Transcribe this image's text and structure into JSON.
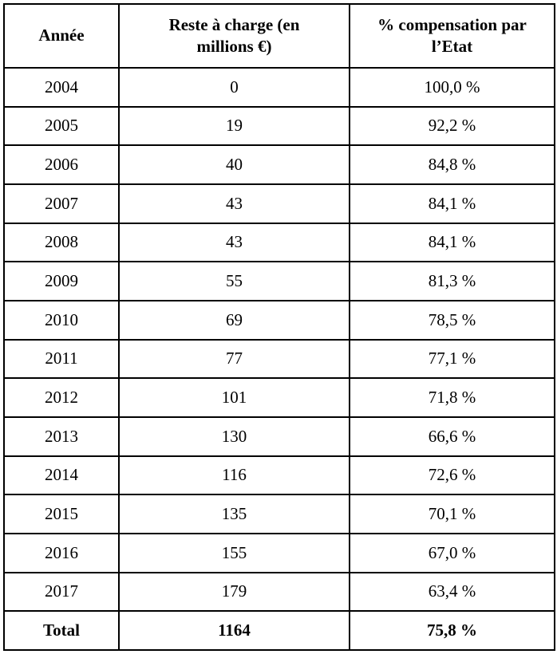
{
  "table": {
    "headers": [
      "Année",
      "Reste à charge (en millions €)",
      "% compensation par l’Etat"
    ],
    "rows": [
      [
        "2004",
        "0",
        "100,0 %"
      ],
      [
        "2005",
        "19",
        "92,2 %"
      ],
      [
        "2006",
        "40",
        "84,8 %"
      ],
      [
        "2007",
        "43",
        "84,1 %"
      ],
      [
        "2008",
        "43",
        "84,1 %"
      ],
      [
        "2009",
        "55",
        "81,3 %"
      ],
      [
        "2010",
        "69",
        "78,5 %"
      ],
      [
        "2011",
        "77",
        "77,1 %"
      ],
      [
        "2012",
        "101",
        "71,8 %"
      ],
      [
        "2013",
        "130",
        "66,6 %"
      ],
      [
        "2014",
        "116",
        "72,6 %"
      ],
      [
        "2015",
        "135",
        "70,1 %"
      ],
      [
        "2016",
        "155",
        "67,0 %"
      ],
      [
        "2017",
        "179",
        "63,4 %"
      ]
    ],
    "total": [
      "Total",
      "1164",
      "75,8 %"
    ]
  },
  "colors": {
    "border": "#000000",
    "background": "#ffffff",
    "text": "#000000"
  },
  "chart_data": {
    "type": "table",
    "columns": [
      "Année",
      "Reste à charge (en millions €)",
      "% compensation par l’Etat"
    ],
    "years": [
      2004,
      2005,
      2006,
      2007,
      2008,
      2009,
      2010,
      2011,
      2012,
      2013,
      2014,
      2015,
      2016,
      2017
    ],
    "reste_a_charge_millions": [
      0,
      19,
      40,
      43,
      43,
      55,
      69,
      77,
      101,
      130,
      116,
      135,
      155,
      179
    ],
    "compensation_pct": [
      100.0,
      92.2,
      84.8,
      84.1,
      84.1,
      81.3,
      78.5,
      77.1,
      71.8,
      66.6,
      72.6,
      70.1,
      67.0,
      63.4
    ],
    "total": {
      "label": "Total",
      "reste_a_charge_millions": 1164,
      "compensation_pct": 75.8
    }
  }
}
